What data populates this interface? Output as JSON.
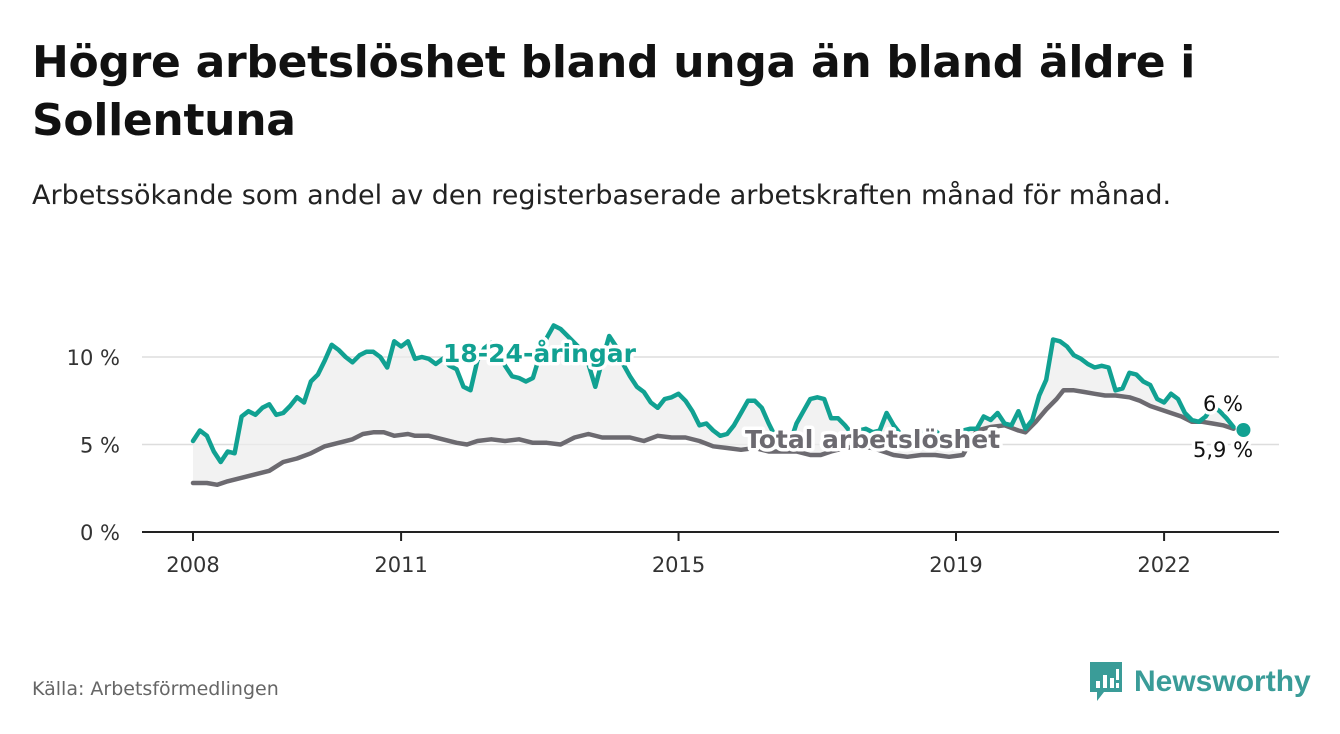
{
  "header": {
    "title": "Högre arbetslöshet bland unga än bland äldre i Sollentuna",
    "subtitle": "Arbetssökande som andel av den registerbaserade arbetskraften månad för månad."
  },
  "footer": {
    "source": "Källa: Arbetsförmedlingen",
    "brand": "Newsworthy"
  },
  "colors": {
    "youth": "#11a192",
    "total": "#6c6a70",
    "band": "#ececec",
    "grid": "#dddddd",
    "brand": "#3a9c98"
  },
  "chart_data": {
    "type": "line",
    "title": "Högre arbetslöshet bland unga än bland äldre i Sollentuna",
    "xlabel": "",
    "ylabel": "",
    "xlim": [
      2008,
      2023.65
    ],
    "ylim": [
      0,
      10
    ],
    "x_ticks": [
      2008,
      2011,
      2015,
      2019,
      2022
    ],
    "x_tick_labels": [
      "2008",
      "2011",
      "2015",
      "2019",
      "2022"
    ],
    "y_ticks": [
      0,
      5,
      10
    ],
    "y_tick_labels": [
      "0 %",
      "5 %",
      "10 %"
    ],
    "grid": true,
    "shaded_between_series": true,
    "series": [
      {
        "name": "18-24-åringar",
        "label": "18-24-åringar",
        "end_label": "6 %",
        "points": [
          [
            2008.0,
            5.2
          ],
          [
            2008.1,
            5.8
          ],
          [
            2008.2,
            5.5
          ],
          [
            2008.3,
            4.6
          ],
          [
            2008.4,
            4.0
          ],
          [
            2008.5,
            4.6
          ],
          [
            2008.6,
            4.5
          ],
          [
            2008.7,
            6.6
          ],
          [
            2008.8,
            6.9
          ],
          [
            2008.9,
            6.7
          ],
          [
            2009.0,
            7.1
          ],
          [
            2009.1,
            7.3
          ],
          [
            2009.2,
            6.7
          ],
          [
            2009.3,
            6.8
          ],
          [
            2009.4,
            7.2
          ],
          [
            2009.5,
            7.7
          ],
          [
            2009.6,
            7.4
          ],
          [
            2009.7,
            8.6
          ],
          [
            2009.8,
            9.0
          ],
          [
            2009.9,
            9.8
          ],
          [
            2010.0,
            10.7
          ],
          [
            2010.1,
            10.4
          ],
          [
            2010.2,
            10.0
          ],
          [
            2010.3,
            9.7
          ],
          [
            2010.4,
            10.1
          ],
          [
            2010.5,
            10.3
          ],
          [
            2010.6,
            10.3
          ],
          [
            2010.7,
            10.0
          ],
          [
            2010.8,
            9.4
          ],
          [
            2010.9,
            10.9
          ],
          [
            2011.0,
            10.6
          ],
          [
            2011.1,
            10.9
          ],
          [
            2011.2,
            9.9
          ],
          [
            2011.3,
            10.0
          ],
          [
            2011.4,
            9.9
          ],
          [
            2011.5,
            9.6
          ],
          [
            2011.6,
            9.9
          ],
          [
            2011.7,
            9.5
          ],
          [
            2011.8,
            9.3
          ],
          [
            2011.9,
            8.3
          ],
          [
            2012.0,
            8.1
          ],
          [
            2012.1,
            9.8
          ],
          [
            2012.2,
            10.5
          ],
          [
            2012.3,
            10.8
          ],
          [
            2012.4,
            10.4
          ],
          [
            2012.5,
            9.5
          ],
          [
            2012.6,
            8.9
          ],
          [
            2012.7,
            8.8
          ],
          [
            2012.8,
            8.6
          ],
          [
            2012.9,
            8.8
          ],
          [
            2013.0,
            10.1
          ],
          [
            2013.1,
            11.1
          ],
          [
            2013.2,
            11.8
          ],
          [
            2013.3,
            11.6
          ],
          [
            2013.4,
            11.2
          ],
          [
            2013.5,
            10.8
          ],
          [
            2013.6,
            10.4
          ],
          [
            2013.7,
            9.6
          ],
          [
            2013.8,
            8.3
          ],
          [
            2013.9,
            9.8
          ],
          [
            2014.0,
            11.2
          ],
          [
            2014.1,
            10.6
          ],
          [
            2014.2,
            9.6
          ],
          [
            2014.3,
            8.9
          ],
          [
            2014.4,
            8.3
          ],
          [
            2014.5,
            8.0
          ],
          [
            2014.6,
            7.4
          ],
          [
            2014.7,
            7.1
          ],
          [
            2014.8,
            7.6
          ],
          [
            2014.9,
            7.7
          ],
          [
            2015.0,
            7.9
          ],
          [
            2015.1,
            7.5
          ],
          [
            2015.2,
            6.9
          ],
          [
            2015.3,
            6.1
          ],
          [
            2015.4,
            6.2
          ],
          [
            2015.5,
            5.8
          ],
          [
            2015.6,
            5.5
          ],
          [
            2015.7,
            5.6
          ],
          [
            2015.8,
            6.1
          ],
          [
            2015.9,
            6.8
          ],
          [
            2016.0,
            7.5
          ],
          [
            2016.1,
            7.5
          ],
          [
            2016.2,
            7.1
          ],
          [
            2016.3,
            6.2
          ],
          [
            2016.4,
            5.4
          ],
          [
            2016.5,
            5.6
          ],
          [
            2016.6,
            5.0
          ],
          [
            2016.7,
            6.2
          ],
          [
            2016.8,
            6.9
          ],
          [
            2016.9,
            7.6
          ],
          [
            2017.0,
            7.7
          ],
          [
            2017.1,
            7.6
          ],
          [
            2017.2,
            6.5
          ],
          [
            2017.3,
            6.5
          ],
          [
            2017.4,
            6.1
          ],
          [
            2017.5,
            5.6
          ],
          [
            2017.6,
            5.8
          ],
          [
            2017.7,
            5.9
          ],
          [
            2017.8,
            5.7
          ],
          [
            2017.9,
            5.8
          ],
          [
            2018.0,
            6.8
          ],
          [
            2018.1,
            6.1
          ],
          [
            2018.2,
            5.6
          ],
          [
            2018.3,
            5.4
          ],
          [
            2018.4,
            5.5
          ],
          [
            2018.5,
            5.7
          ],
          [
            2018.6,
            5.6
          ],
          [
            2018.7,
            5.8
          ],
          [
            2018.8,
            5.4
          ],
          [
            2018.9,
            5.6
          ],
          [
            2019.0,
            5.6
          ],
          [
            2019.1,
            5.8
          ],
          [
            2019.2,
            5.9
          ],
          [
            2019.3,
            5.9
          ],
          [
            2019.4,
            6.6
          ],
          [
            2019.5,
            6.4
          ],
          [
            2019.6,
            6.8
          ],
          [
            2019.7,
            6.2
          ],
          [
            2019.8,
            6.1
          ],
          [
            2019.9,
            6.9
          ],
          [
            2020.0,
            5.9
          ],
          [
            2020.1,
            6.4
          ],
          [
            2020.2,
            7.8
          ],
          [
            2020.3,
            8.7
          ],
          [
            2020.4,
            11.0
          ],
          [
            2020.5,
            10.9
          ],
          [
            2020.6,
            10.6
          ],
          [
            2020.7,
            10.1
          ],
          [
            2020.8,
            9.9
          ],
          [
            2020.9,
            9.6
          ],
          [
            2021.0,
            9.4
          ],
          [
            2021.1,
            9.5
          ],
          [
            2021.2,
            9.4
          ],
          [
            2021.3,
            8.1
          ],
          [
            2021.4,
            8.2
          ],
          [
            2021.5,
            9.1
          ],
          [
            2021.6,
            9.0
          ],
          [
            2021.7,
            8.6
          ],
          [
            2021.8,
            8.4
          ],
          [
            2021.9,
            7.6
          ],
          [
            2022.0,
            7.4
          ],
          [
            2022.1,
            7.9
          ],
          [
            2022.2,
            7.6
          ],
          [
            2022.3,
            6.8
          ],
          [
            2022.4,
            6.4
          ],
          [
            2022.5,
            6.3
          ],
          [
            2022.6,
            6.6
          ],
          [
            2022.7,
            7.2
          ],
          [
            2022.8,
            6.9
          ],
          [
            2022.9,
            6.5
          ],
          [
            2023.0,
            6.0
          ]
        ]
      },
      {
        "name": "Total arbetslöshet",
        "label": "Total arbetslöshet",
        "end_label": "5,9 %",
        "points": [
          [
            2008.0,
            2.8
          ],
          [
            2008.2,
            2.8
          ],
          [
            2008.35,
            2.7
          ],
          [
            2008.5,
            2.9
          ],
          [
            2008.7,
            3.1
          ],
          [
            2008.9,
            3.3
          ],
          [
            2009.1,
            3.5
          ],
          [
            2009.3,
            4.0
          ],
          [
            2009.5,
            4.2
          ],
          [
            2009.7,
            4.5
          ],
          [
            2009.9,
            4.9
          ],
          [
            2010.1,
            5.1
          ],
          [
            2010.3,
            5.3
          ],
          [
            2010.45,
            5.6
          ],
          [
            2010.6,
            5.7
          ],
          [
            2010.75,
            5.7
          ],
          [
            2010.9,
            5.5
          ],
          [
            2011.1,
            5.6
          ],
          [
            2011.2,
            5.5
          ],
          [
            2011.4,
            5.5
          ],
          [
            2011.6,
            5.3
          ],
          [
            2011.8,
            5.1
          ],
          [
            2011.95,
            5.0
          ],
          [
            2012.1,
            5.2
          ],
          [
            2012.3,
            5.3
          ],
          [
            2012.5,
            5.2
          ],
          [
            2012.7,
            5.3
          ],
          [
            2012.9,
            5.1
          ],
          [
            2013.1,
            5.1
          ],
          [
            2013.3,
            5.0
          ],
          [
            2013.5,
            5.4
          ],
          [
            2013.7,
            5.6
          ],
          [
            2013.9,
            5.4
          ],
          [
            2014.1,
            5.4
          ],
          [
            2014.3,
            5.4
          ],
          [
            2014.5,
            5.2
          ],
          [
            2014.7,
            5.5
          ],
          [
            2014.9,
            5.4
          ],
          [
            2015.1,
            5.4
          ],
          [
            2015.3,
            5.2
          ],
          [
            2015.5,
            4.9
          ],
          [
            2015.7,
            4.8
          ],
          [
            2015.9,
            4.7
          ],
          [
            2016.1,
            4.8
          ],
          [
            2016.3,
            4.6
          ],
          [
            2016.5,
            4.6
          ],
          [
            2016.7,
            4.6
          ],
          [
            2016.9,
            4.4
          ],
          [
            2017.05,
            4.4
          ],
          [
            2017.2,
            4.6
          ],
          [
            2017.4,
            4.8
          ],
          [
            2017.6,
            4.9
          ],
          [
            2017.8,
            4.8
          ],
          [
            2017.95,
            4.6
          ],
          [
            2018.1,
            4.4
          ],
          [
            2018.3,
            4.3
          ],
          [
            2018.5,
            4.4
          ],
          [
            2018.7,
            4.4
          ],
          [
            2018.9,
            4.3
          ],
          [
            2019.1,
            4.4
          ],
          [
            2019.3,
            5.8
          ],
          [
            2019.5,
            6.0
          ],
          [
            2019.7,
            6.1
          ],
          [
            2019.9,
            5.8
          ],
          [
            2020.0,
            5.7
          ],
          [
            2020.15,
            6.3
          ],
          [
            2020.3,
            7.0
          ],
          [
            2020.45,
            7.6
          ],
          [
            2020.55,
            8.1
          ],
          [
            2020.7,
            8.1
          ],
          [
            2020.85,
            8.0
          ],
          [
            2021.0,
            7.9
          ],
          [
            2021.15,
            7.8
          ],
          [
            2021.3,
            7.8
          ],
          [
            2021.5,
            7.7
          ],
          [
            2021.65,
            7.5
          ],
          [
            2021.8,
            7.2
          ],
          [
            2021.95,
            7.0
          ],
          [
            2022.1,
            6.8
          ],
          [
            2022.25,
            6.6
          ],
          [
            2022.4,
            6.3
          ],
          [
            2022.55,
            6.3
          ],
          [
            2022.7,
            6.2
          ],
          [
            2022.85,
            6.1
          ],
          [
            2023.0,
            5.9
          ]
        ]
      }
    ]
  }
}
